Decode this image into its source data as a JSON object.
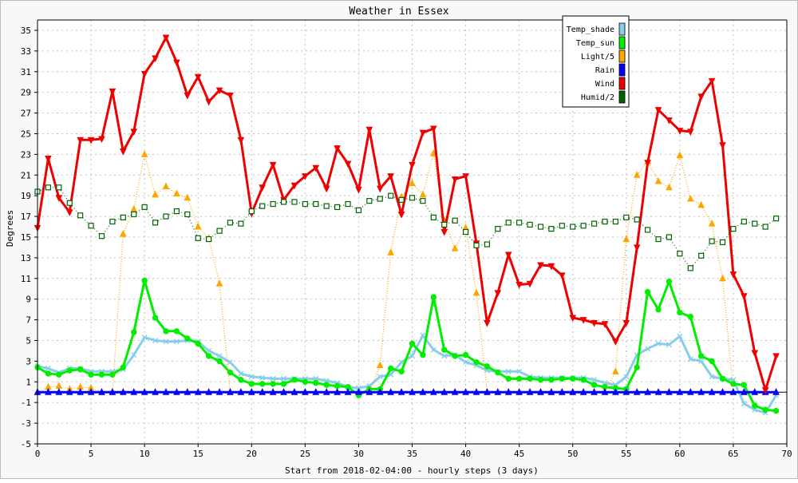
{
  "chart_data": {
    "type": "line",
    "title": "Weather in Essex",
    "xlabel": "Start from 2018-02-04:00 - hourly steps (3 days)",
    "ylabel": "Degrees",
    "xlim": [
      0,
      70
    ],
    "ylim": [
      -5,
      36
    ],
    "x_ticks": [
      0,
      5,
      10,
      15,
      20,
      25,
      30,
      35,
      40,
      45,
      50,
      55,
      60,
      65,
      70
    ],
    "y_ticks": [
      -5,
      -3,
      -1,
      1,
      3,
      5,
      7,
      9,
      11,
      13,
      15,
      17,
      19,
      21,
      23,
      25,
      27,
      29,
      31,
      33,
      35
    ],
    "grid": true,
    "legend_position": "top-right",
    "x": [
      0,
      1,
      2,
      3,
      4,
      5,
      6,
      7,
      8,
      9,
      10,
      11,
      12,
      13,
      14,
      15,
      16,
      17,
      18,
      19,
      20,
      21,
      22,
      23,
      24,
      25,
      26,
      27,
      28,
      29,
      30,
      31,
      32,
      33,
      34,
      35,
      36,
      37,
      38,
      39,
      40,
      41,
      42,
      43,
      44,
      45,
      46,
      47,
      48,
      49,
      50,
      51,
      52,
      53,
      54,
      55,
      56,
      57,
      58,
      59,
      60,
      61,
      62,
      63,
      64,
      65,
      66,
      67,
      68,
      69
    ],
    "series": [
      {
        "name": "Temp_shade",
        "color": "#87ceeb",
        "marker": "x",
        "values": [
          2.5,
          2.3,
          1.9,
          2.3,
          2.3,
          2.0,
          2.0,
          2.0,
          2.2,
          3.6,
          5.3,
          5.0,
          4.9,
          4.9,
          5.0,
          4.9,
          4.0,
          3.5,
          2.9,
          1.8,
          1.5,
          1.4,
          1.3,
          1.3,
          1.3,
          1.3,
          1.3,
          1.1,
          0.9,
          0.5,
          0.4,
          0.6,
          1.5,
          1.7,
          2.9,
          3.5,
          5.5,
          4.1,
          3.5,
          3.6,
          2.9,
          2.6,
          2.1,
          2.0,
          2.0,
          2.0,
          1.5,
          1.4,
          1.4,
          1.4,
          1.4,
          1.4,
          1.2,
          0.9,
          0.7,
          1.5,
          3.6,
          4.2,
          4.7,
          4.6,
          5.4,
          3.2,
          3.0,
          1.5,
          1.3,
          1.2,
          -1.1,
          -1.7,
          -2.0,
          -0.3
        ]
      },
      {
        "name": "Temp_sun",
        "color": "#00ee00",
        "marker": "circle",
        "values": [
          2.4,
          1.8,
          1.7,
          2.1,
          2.2,
          1.7,
          1.7,
          1.7,
          2.4,
          5.8,
          10.8,
          7.2,
          5.9,
          5.9,
          5.2,
          4.7,
          3.5,
          3.0,
          1.9,
          1.2,
          0.8,
          0.8,
          0.8,
          0.8,
          1.2,
          1.0,
          0.9,
          0.7,
          0.6,
          0.5,
          -0.3,
          0.3,
          0.3,
          2.3,
          2.0,
          4.7,
          3.6,
          9.2,
          4.1,
          3.5,
          3.6,
          2.9,
          2.5,
          1.9,
          1.3,
          1.3,
          1.3,
          1.2,
          1.2,
          1.3,
          1.3,
          1.2,
          0.7,
          0.5,
          0.4,
          0.3,
          2.4,
          9.7,
          8.0,
          10.7,
          7.7,
          7.3,
          3.5,
          3.0,
          1.3,
          0.8,
          0.7,
          -1.3,
          -1.7,
          -1.8
        ]
      },
      {
        "name": "Light/5",
        "color": "#ffa500",
        "marker": "triangle-up",
        "values": [
          0,
          0.5,
          0.6,
          0.3,
          0.5,
          0.4,
          0,
          0,
          15.3,
          17.7,
          23.0,
          19.1,
          19.9,
          19.2,
          18.8,
          16.0,
          14.9,
          10.5,
          0,
          0,
          0,
          0,
          0,
          0,
          0,
          0,
          0,
          0,
          0,
          0,
          0,
          0,
          2.6,
          13.5,
          18.9,
          20.2,
          19.1,
          23.1,
          16.6,
          13.9,
          15.9,
          9.6,
          0,
          0,
          0,
          0,
          0,
          0,
          0,
          0,
          0,
          0,
          0,
          0,
          2.0,
          14.8,
          21.0,
          22.3,
          20.4,
          19.8,
          22.9,
          18.7,
          18.1,
          16.3,
          11.0,
          0,
          0,
          0,
          0,
          0
        ]
      },
      {
        "name": "Rain",
        "color": "#0000ff",
        "marker": "triangle-up",
        "values": [
          0,
          0,
          0,
          0,
          0,
          0,
          0,
          0,
          0,
          0,
          0,
          0,
          0,
          0,
          0,
          0,
          0,
          0,
          0,
          0,
          0,
          0,
          0,
          0,
          0,
          0,
          0,
          0,
          0,
          0,
          0,
          0,
          0,
          0,
          0,
          0,
          0,
          0,
          0,
          0,
          0,
          0,
          0,
          0,
          0,
          0,
          0,
          0,
          0,
          0,
          0,
          0,
          0,
          0,
          0,
          0,
          0,
          0,
          0,
          0,
          0,
          0,
          0,
          0,
          0,
          0,
          0,
          0,
          0,
          0
        ]
      },
      {
        "name": "Wind",
        "color": "#ee0000",
        "marker": "triangle-down",
        "values": [
          15.9,
          22.6,
          18.8,
          17.4,
          24.4,
          24.4,
          24.5,
          29.1,
          23.3,
          25.2,
          30.8,
          32.3,
          34.3,
          31.9,
          28.7,
          30.5,
          28.1,
          29.2,
          28.7,
          24.4,
          17.3,
          19.8,
          22.0,
          18.6,
          20.0,
          20.9,
          21.7,
          19.7,
          23.6,
          22.1,
          19.6,
          25.4,
          19.7,
          20.9,
          17.2,
          22.0,
          25.1,
          25.5,
          15.5,
          20.6,
          20.9,
          14.4,
          6.7,
          9.6,
          13.3,
          10.4,
          10.5,
          12.3,
          12.2,
          11.3,
          7.2,
          7.0,
          6.7,
          6.6,
          4.9,
          6.7,
          14.0,
          22.2,
          27.3,
          26.3,
          25.3,
          25.2,
          28.6,
          30.1,
          23.9,
          11.4,
          9.3,
          3.8,
          0.2,
          3.5
        ]
      },
      {
        "name": "Humid/2",
        "color": "#006400",
        "marker": "square",
        "values": [
          19.4,
          19.8,
          19.8,
          18.3,
          17.1,
          16.1,
          15.1,
          16.5,
          16.9,
          17.2,
          17.9,
          16.4,
          17.0,
          17.5,
          17.2,
          14.9,
          14.8,
          15.6,
          16.4,
          16.3,
          17.5,
          18.0,
          18.2,
          18.4,
          18.4,
          18.2,
          18.2,
          18.0,
          17.9,
          18.2,
          17.6,
          18.5,
          18.7,
          19.0,
          18.6,
          18.8,
          18.5,
          16.9,
          16.2,
          16.6,
          15.5,
          14.2,
          14.3,
          15.8,
          16.4,
          16.4,
          16.2,
          16.0,
          15.8,
          16.1,
          16.0,
          16.1,
          16.3,
          16.5,
          16.5,
          16.9,
          16.7,
          15.7,
          14.8,
          15.0,
          13.4,
          12.0,
          13.2,
          14.6,
          14.5,
          15.8,
          16.5,
          16.3,
          16.0,
          16.8
        ]
      }
    ]
  }
}
